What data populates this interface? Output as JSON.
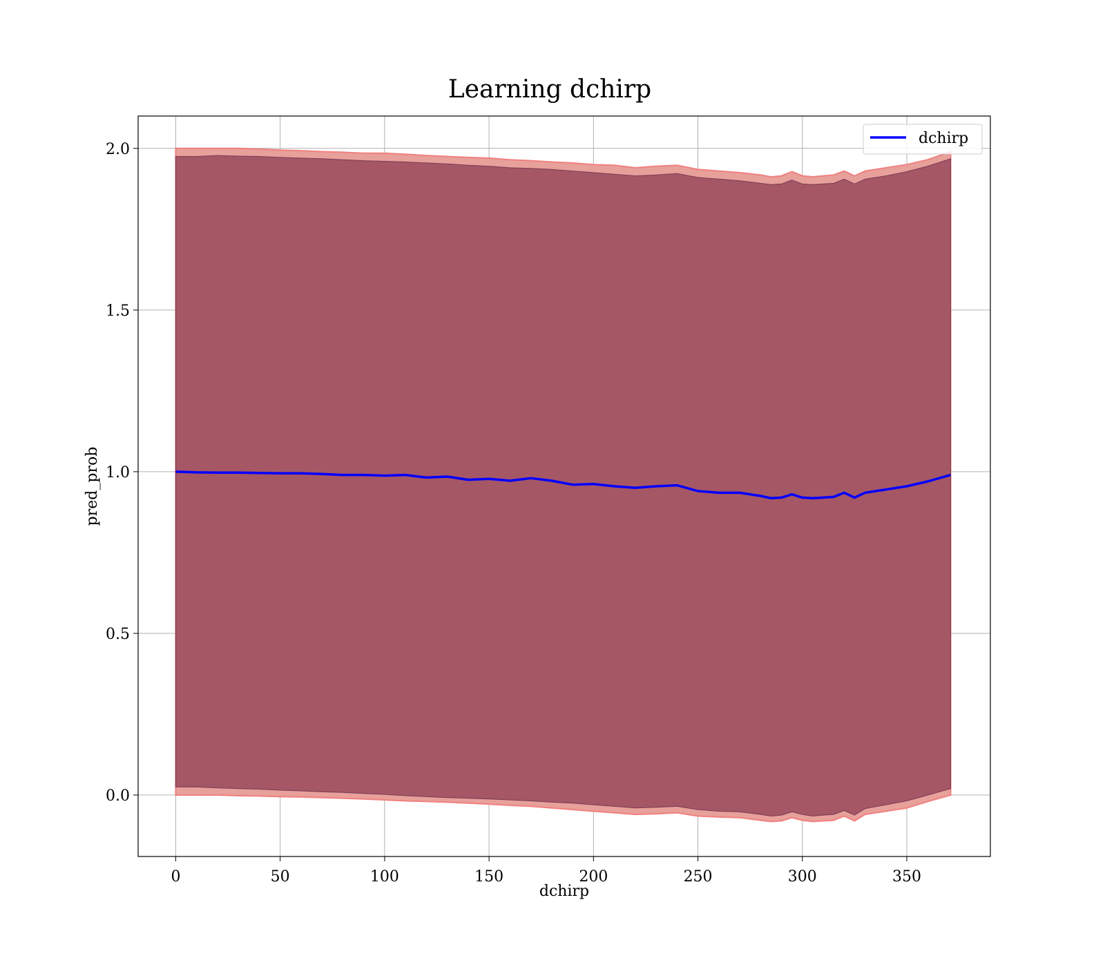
{
  "chart_data": {
    "type": "line",
    "title": "Learning dchirp",
    "xlabel": "dchirp",
    "ylabel": "pred_prob",
    "xlim": [
      -18,
      390
    ],
    "ylim": [
      -0.19,
      2.1
    ],
    "xticks": [
      "0",
      "50",
      "100",
      "150",
      "200",
      "250",
      "300",
      "350"
    ],
    "xtick_values": [
      0,
      50,
      100,
      150,
      200,
      250,
      300,
      350
    ],
    "yticks": [
      "0.0",
      "0.5",
      "1.0",
      "1.5",
      "2.0"
    ],
    "ytick_values": [
      0,
      0.5,
      1.0,
      1.5,
      2.0
    ],
    "grid": true,
    "legend": {
      "position": "top-right",
      "entries": [
        "dchirp"
      ]
    },
    "colors": {
      "line": "#0000ff",
      "band_outer": "#e8a09a",
      "band_outer_stroke": "#f08080",
      "band_inner": "#8b3a52",
      "grid": "#b0b0b0"
    },
    "series": [
      {
        "name": "dchirp",
        "x": [
          0,
          10,
          20,
          30,
          40,
          50,
          60,
          70,
          80,
          90,
          100,
          110,
          120,
          130,
          140,
          150,
          160,
          170,
          180,
          190,
          200,
          210,
          220,
          230,
          240,
          250,
          260,
          270,
          280,
          285,
          290,
          295,
          300,
          305,
          310,
          315,
          320,
          325,
          330,
          340,
          350,
          360,
          371
        ],
        "y": [
          1.0,
          0.998,
          0.997,
          0.997,
          0.996,
          0.995,
          0.995,
          0.993,
          0.99,
          0.99,
          0.988,
          0.99,
          0.982,
          0.985,
          0.975,
          0.978,
          0.972,
          0.98,
          0.972,
          0.96,
          0.962,
          0.955,
          0.95,
          0.955,
          0.958,
          0.94,
          0.935,
          0.935,
          0.925,
          0.918,
          0.92,
          0.93,
          0.92,
          0.918,
          0.92,
          0.922,
          0.935,
          0.92,
          0.935,
          0.945,
          0.955,
          0.97,
          0.99
        ]
      }
    ],
    "bands": [
      {
        "label": "outer band",
        "lower": [
          0.0,
          0.0,
          0.0,
          -0.002,
          -0.003,
          -0.005,
          -0.006,
          -0.008,
          -0.01,
          -0.012,
          -0.015,
          -0.018,
          -0.02,
          -0.022,
          -0.025,
          -0.028,
          -0.032,
          -0.035,
          -0.04,
          -0.045,
          -0.05,
          -0.055,
          -0.06,
          -0.058,
          -0.055,
          -0.065,
          -0.068,
          -0.07,
          -0.078,
          -0.082,
          -0.08,
          -0.07,
          -0.078,
          -0.082,
          -0.08,
          -0.078,
          -0.065,
          -0.08,
          -0.06,
          -0.05,
          -0.04,
          -0.02,
          0.0
        ],
        "upper": [
          2.0,
          2.0,
          2.0,
          2.0,
          1.998,
          1.995,
          1.993,
          1.99,
          1.988,
          1.985,
          1.985,
          1.982,
          1.978,
          1.975,
          1.972,
          1.97,
          1.965,
          1.962,
          1.958,
          1.955,
          1.95,
          1.948,
          1.94,
          1.945,
          1.948,
          1.935,
          1.93,
          1.925,
          1.918,
          1.912,
          1.915,
          1.928,
          1.915,
          1.912,
          1.915,
          1.918,
          1.93,
          1.915,
          1.93,
          1.94,
          1.95,
          1.965,
          1.99
        ]
      },
      {
        "label": "inner band",
        "lower": [
          0.025,
          0.025,
          0.022,
          0.02,
          0.018,
          0.015,
          0.013,
          0.01,
          0.008,
          0.005,
          0.002,
          -0.002,
          -0.005,
          -0.008,
          -0.01,
          -0.012,
          -0.015,
          -0.018,
          -0.022,
          -0.025,
          -0.03,
          -0.035,
          -0.04,
          -0.038,
          -0.035,
          -0.045,
          -0.05,
          -0.052,
          -0.06,
          -0.065,
          -0.062,
          -0.052,
          -0.06,
          -0.065,
          -0.062,
          -0.06,
          -0.048,
          -0.062,
          -0.042,
          -0.03,
          -0.018,
          0.0,
          0.02
        ],
        "upper": [
          1.975,
          1.975,
          1.978,
          1.976,
          1.975,
          1.972,
          1.97,
          1.968,
          1.965,
          1.962,
          1.96,
          1.958,
          1.955,
          1.952,
          1.948,
          1.945,
          1.94,
          1.938,
          1.935,
          1.93,
          1.925,
          1.92,
          1.915,
          1.918,
          1.922,
          1.91,
          1.905,
          1.9,
          1.892,
          1.888,
          1.89,
          1.902,
          1.89,
          1.888,
          1.89,
          1.892,
          1.905,
          1.89,
          1.905,
          1.915,
          1.928,
          1.945,
          1.968
        ]
      }
    ]
  }
}
